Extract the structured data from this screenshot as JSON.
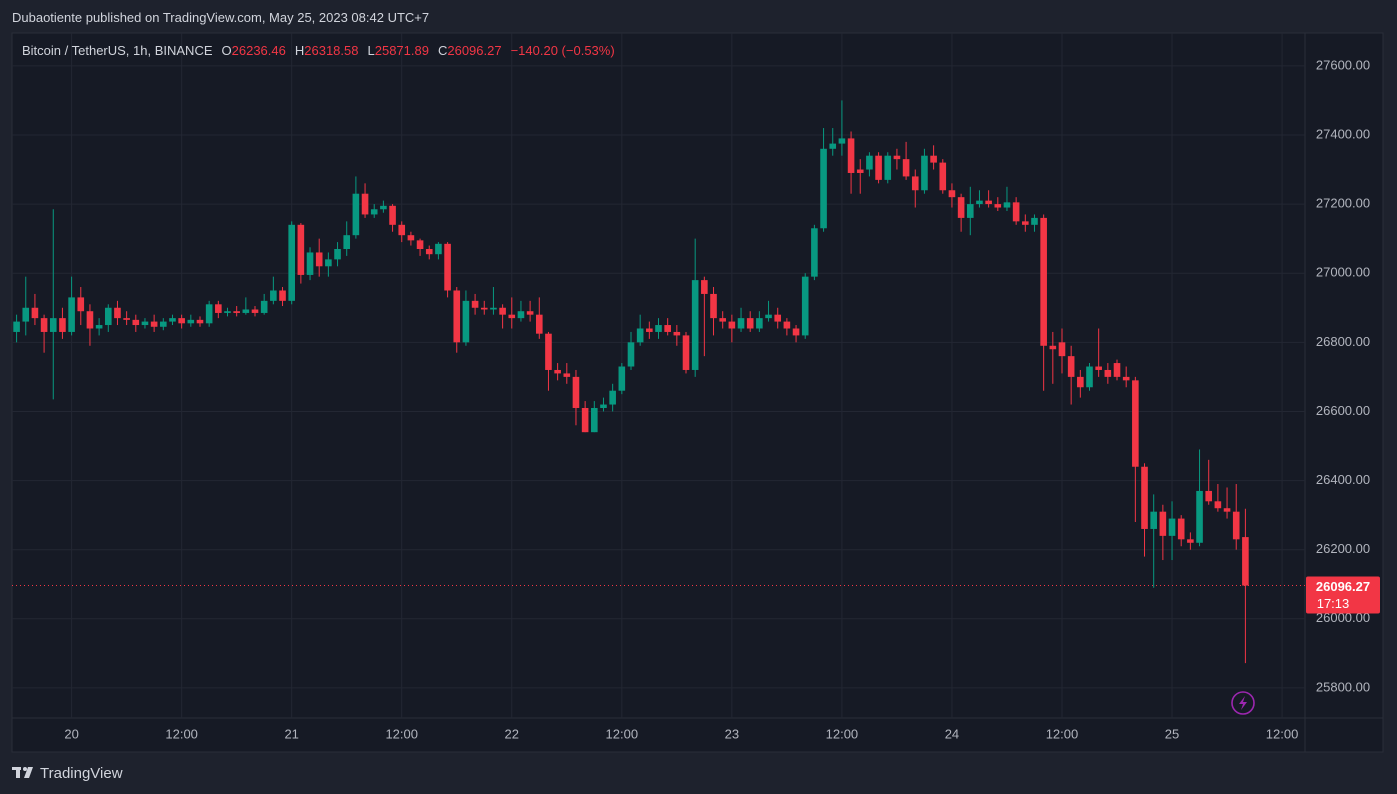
{
  "header": {
    "published": "Dubaotiente published on TradingView.com, May 25, 2023 08:42 UTC+7"
  },
  "footer": {
    "brand": "TradingView"
  },
  "chart_data": {
    "type": "candlestick",
    "symbol": "Bitcoin / TetherUS, 1h, BINANCE",
    "ohlc_keys": [
      "O",
      "H",
      "L",
      "C"
    ],
    "change": "−140.20 (−0.53%)",
    "countdown": "17:13",
    "up_color": "#089981",
    "down_color": "#f23645",
    "grid": true,
    "xlim": [
      -0.5,
      140.5
    ],
    "xticks": [
      {
        "value": 6,
        "label": "20"
      },
      {
        "value": 18,
        "label": "12:00"
      },
      {
        "value": 30,
        "label": "21"
      },
      {
        "value": 42,
        "label": "12:00"
      },
      {
        "value": 54,
        "label": "22"
      },
      {
        "value": 66,
        "label": "12:00"
      },
      {
        "value": 78,
        "label": "23"
      },
      {
        "value": 90,
        "label": "12:00"
      },
      {
        "value": 102,
        "label": "24"
      },
      {
        "value": 114,
        "label": "12:00"
      },
      {
        "value": 126,
        "label": "25"
      },
      {
        "value": 138,
        "label": "12:00"
      }
    ],
    "ylim": [
      25713,
      27695
    ],
    "yticks": [
      {
        "value": 25800,
        "label": "25800.00"
      },
      {
        "value": 26000,
        "label": "26000.00"
      },
      {
        "value": 26200,
        "label": "26200.00"
      },
      {
        "value": 26400,
        "label": "26400.00"
      },
      {
        "value": 26600,
        "label": "26600.00"
      },
      {
        "value": 26800,
        "label": "26800.00"
      },
      {
        "value": 27000,
        "label": "27000.00"
      },
      {
        "value": 27200,
        "label": "27200.00"
      },
      {
        "value": 27400,
        "label": "27400.00"
      },
      {
        "value": 27600,
        "label": "27600.00"
      }
    ],
    "open": [
      26830,
      26860,
      26900,
      26870,
      26830,
      26870,
      26830,
      26930,
      26890,
      26840,
      26850,
      26900,
      26870,
      26865,
      26850,
      26860,
      26845,
      26860,
      26870,
      26855,
      26865,
      26855,
      26910,
      26885,
      26890,
      26885,
      26895,
      26885,
      26920,
      26950,
      26920,
      27140,
      26995,
      27060,
      27020,
      27040,
      27070,
      27110,
      27230,
      27170,
      27185,
      27195,
      27140,
      27110,
      27095,
      27070,
      27055,
      27085,
      26950,
      26800,
      26920,
      26900,
      26895,
      26900,
      26880,
      26870,
      26890,
      26880,
      26825,
      26720,
      26710,
      26700,
      26610,
      26540,
      26610,
      26620,
      26660,
      26730,
      26800,
      26840,
      26830,
      26850,
      26830,
      26820,
      26720,
      26980,
      26940,
      26870,
      26860,
      26840,
      26870,
      26840,
      26870,
      26880,
      26860,
      26840,
      26820,
      26990,
      27130,
      27360,
      27375,
      27390,
      27300,
      27300,
      27340,
      27270,
      27340,
      27330,
      27280,
      27240,
      27340,
      27320,
      27240,
      27220,
      27160,
      27200,
      27210,
      27200,
      27190,
      27205,
      27150,
      27140,
      27160,
      26790,
      26800,
      26760,
      26700,
      26670,
      26730,
      26720,
      26740,
      26700,
      26690,
      26440,
      26260,
      26310,
      26240,
      26290,
      26230,
      26220,
      26370,
      26340,
      26320,
      26310,
      26236.46
    ],
    "high": [
      26880,
      26990,
      26940,
      26880,
      27185,
      26900,
      26990,
      26960,
      26910,
      26870,
      26910,
      26920,
      26890,
      26880,
      26870,
      26880,
      26870,
      26880,
      26880,
      26880,
      26875,
      26920,
      26920,
      26900,
      26905,
      26930,
      26905,
      26940,
      26990,
      26960,
      27150,
      27145,
      27075,
      27100,
      27060,
      27090,
      27150,
      27280,
      27260,
      27200,
      27210,
      27200,
      27150,
      27120,
      27100,
      27080,
      27090,
      27090,
      26960,
      26950,
      26940,
      26920,
      26960,
      26910,
      26930,
      26920,
      26920,
      26930,
      26830,
      26740,
      26740,
      26720,
      26630,
      26630,
      26640,
      26680,
      26740,
      26830,
      26880,
      26860,
      26870,
      26870,
      26850,
      26830,
      27100,
      26990,
      26960,
      26890,
      26880,
      26900,
      26890,
      26890,
      26920,
      26900,
      26870,
      26850,
      27000,
      27140,
      27420,
      27420,
      27500,
      27410,
      27330,
      27350,
      27350,
      27350,
      27360,
      27380,
      27300,
      27360,
      27370,
      27330,
      27260,
      27230,
      27250,
      27240,
      27240,
      27220,
      27250,
      27220,
      27170,
      27170,
      27170,
      26830,
      26840,
      26790,
      26720,
      26740,
      26840,
      26740,
      26750,
      26730,
      26700,
      26450,
      26360,
      26330,
      26340,
      26300,
      26250,
      26490,
      26460,
      26390,
      26380,
      26390,
      26318.58
    ],
    "low": [
      26800,
      26820,
      26850,
      26770,
      26635,
      26810,
      26820,
      26850,
      26790,
      26820,
      26830,
      26850,
      26850,
      26830,
      26840,
      26830,
      26835,
      26850,
      26840,
      26845,
      26845,
      26845,
      26870,
      26875,
      26875,
      26880,
      26875,
      26880,
      26910,
      26905,
      26910,
      26970,
      26980,
      26990,
      26990,
      27020,
      27050,
      27100,
      27160,
      27160,
      27175,
      27120,
      27090,
      27080,
      27050,
      27040,
      27040,
      26930,
      26770,
      26790,
      26880,
      26880,
      26880,
      26840,
      26840,
      26860,
      26860,
      26810,
      26660,
      26690,
      26680,
      26560,
      26540,
      26540,
      26600,
      26600,
      26650,
      26720,
      26790,
      26810,
      26810,
      26820,
      26790,
      26710,
      26700,
      26760,
      26820,
      26840,
      26800,
      26830,
      26830,
      26830,
      26860,
      26840,
      26820,
      26800,
      26810,
      26980,
      27120,
      27340,
      27340,
      27230,
      27230,
      27280,
      27260,
      27260,
      27300,
      27270,
      27190,
      27230,
      27300,
      27230,
      27190,
      27120,
      27110,
      27190,
      27190,
      27180,
      27180,
      27140,
      27120,
      27120,
      26660,
      26680,
      26710,
      26620,
      26640,
      26660,
      26700,
      26680,
      26690,
      26670,
      26280,
      26180,
      26090,
      26170,
      26170,
      26210,
      26200,
      26210,
      26330,
      26310,
      26290,
      26200,
      25871.89
    ],
    "close": [
      26860,
      26900,
      26870,
      26830,
      26870,
      26830,
      26930,
      26890,
      26840,
      26850,
      26900,
      26870,
      26865,
      26850,
      26860,
      26845,
      26860,
      26870,
      26855,
      26865,
      26855,
      26910,
      26885,
      26890,
      26885,
      26895,
      26885,
      26920,
      26950,
      26920,
      27140,
      26995,
      27060,
      27020,
      27040,
      27070,
      27110,
      27230,
      27170,
      27185,
      27195,
      27140,
      27110,
      27095,
      27070,
      27055,
      27085,
      26950,
      26800,
      26920,
      26900,
      26895,
      26900,
      26880,
      26870,
      26890,
      26880,
      26825,
      26720,
      26710,
      26700,
      26610,
      26540,
      26610,
      26620,
      26660,
      26730,
      26800,
      26840,
      26830,
      26850,
      26830,
      26820,
      26720,
      26980,
      26940,
      26870,
      26860,
      26840,
      26870,
      26840,
      26870,
      26880,
      26860,
      26840,
      26820,
      26990,
      27130,
      27360,
      27375,
      27390,
      27290,
      27290,
      27340,
      27270,
      27340,
      27330,
      27280,
      27240,
      27340,
      27320,
      27240,
      27220,
      27160,
      27200,
      27210,
      27200,
      27190,
      27205,
      27150,
      27140,
      27160,
      26790,
      26780,
      26760,
      26700,
      26670,
      26730,
      26720,
      26700,
      26700,
      26690,
      26440,
      26260,
      26310,
      26240,
      26290,
      26230,
      26220,
      26370,
      26340,
      26320,
      26310,
      26230,
      26096.27
    ]
  }
}
